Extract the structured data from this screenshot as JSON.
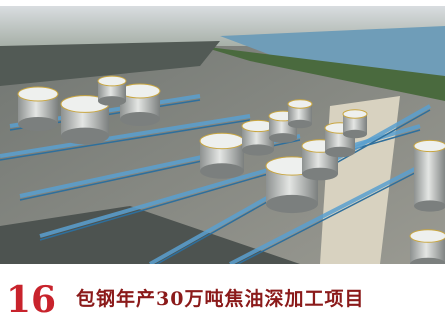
{
  "caption": {
    "number": "16",
    "title": "包钢年产30万吨焦油深加工项目"
  }
}
